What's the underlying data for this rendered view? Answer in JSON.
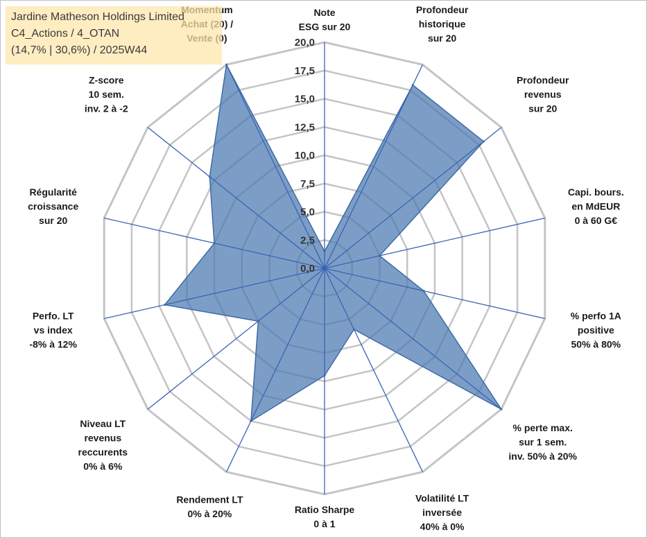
{
  "info": {
    "company": "Jardine Matheson Holdings Limited",
    "category": "C4_Actions / 4_OTAN",
    "stats": "(14,7% | 30,6%) / 2025W44"
  },
  "colors": {
    "fill": "#4a78b0",
    "stroke": "#3e6aa3",
    "grid": "#c4c4c4",
    "spoke": "#3a62b5"
  },
  "chart_data": {
    "type": "radar",
    "title": "",
    "rlim": [
      0,
      20
    ],
    "ticks": [
      "0,0",
      "2,5",
      "5,0",
      "7,5",
      "10,0",
      "12,5",
      "15,0",
      "17,5",
      "20,0"
    ],
    "axes": [
      {
        "label": [
          "Note",
          "ESG sur 20"
        ],
        "value": 1.5
      },
      {
        "label": [
          "Profondeur",
          "historique",
          "sur 20"
        ],
        "value": 18.0
      },
      {
        "label": [
          "Profondeur",
          "revenus",
          "sur 20"
        ],
        "value": 18.0
      },
      {
        "label": [
          "Capi. bours.",
          "en MdEUR",
          "0 à 60 G€"
        ],
        "value": 5.0
      },
      {
        "label": [
          "% perfo 1A",
          "positive",
          "50% à 80%"
        ],
        "value": 9.0
      },
      {
        "label": [
          "% perte max.",
          "sur 1 sem.",
          "inv. 50% à 20%"
        ],
        "value": 20.0
      },
      {
        "label": [
          "Volatilité LT",
          "inversée",
          "40% à 0%"
        ],
        "value": 6.0
      },
      {
        "label": [
          "Ratio Sharpe",
          "0 à 1"
        ],
        "value": 9.5
      },
      {
        "label": [
          "Rendement LT",
          "0% à 20%"
        ],
        "value": 15.0
      },
      {
        "label": [
          "Niveau LT",
          "revenus",
          "reccurents",
          "0% à 6%"
        ],
        "value": 7.5
      },
      {
        "label": [
          "Perfo. LT",
          "vs index",
          "-8% à 12%"
        ],
        "value": 14.5
      },
      {
        "label": [
          "Régularité",
          "croissance",
          "sur 20"
        ],
        "value": 10.0
      },
      {
        "label": [
          "Z-score",
          "10 sem.",
          "inv. 2 à -2"
        ],
        "value": 13.0
      },
      {
        "label": [
          "Momentum",
          "Achat (20) /",
          "Vente (0)"
        ],
        "value": 20.0
      }
    ]
  }
}
